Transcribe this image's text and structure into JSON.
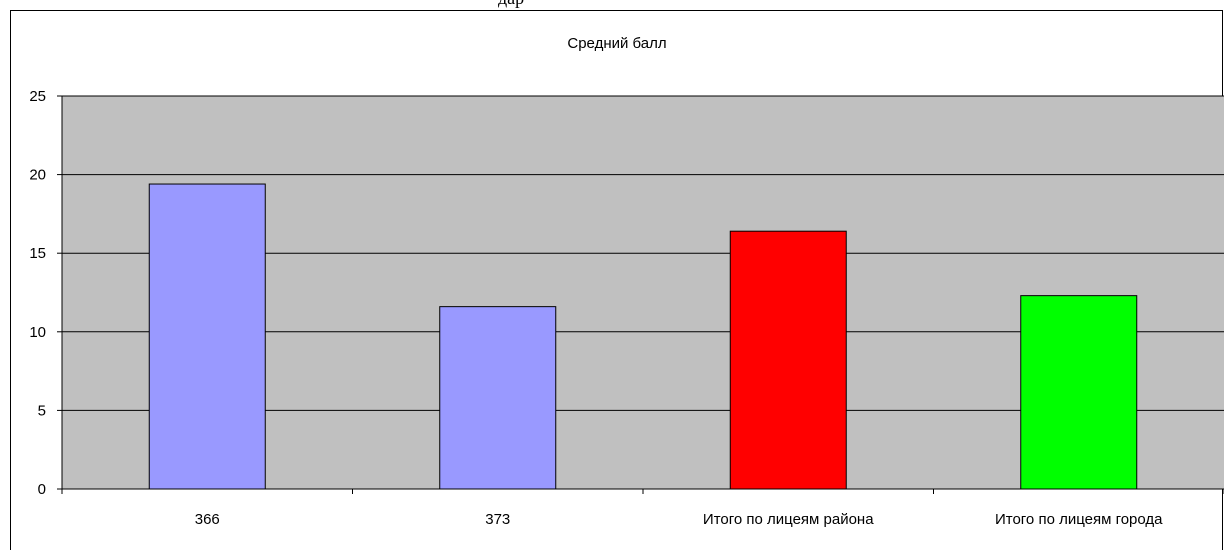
{
  "page_fragment": "дар",
  "chart_data": {
    "type": "bar",
    "title": "Средний балл",
    "categories": [
      "366",
      "373",
      "Итого по лицеям района",
      "Итого по лицеям города"
    ],
    "values": [
      19.4,
      11.6,
      16.4,
      12.3
    ],
    "colors": [
      "#9999ff",
      "#9999ff",
      "#ff0000",
      "#00ff00"
    ],
    "ylim": [
      0,
      25
    ],
    "yticks": [
      0,
      5,
      10,
      15,
      20,
      25
    ],
    "grid": true,
    "legend": "none",
    "plot_background": "#c0c0c0"
  }
}
